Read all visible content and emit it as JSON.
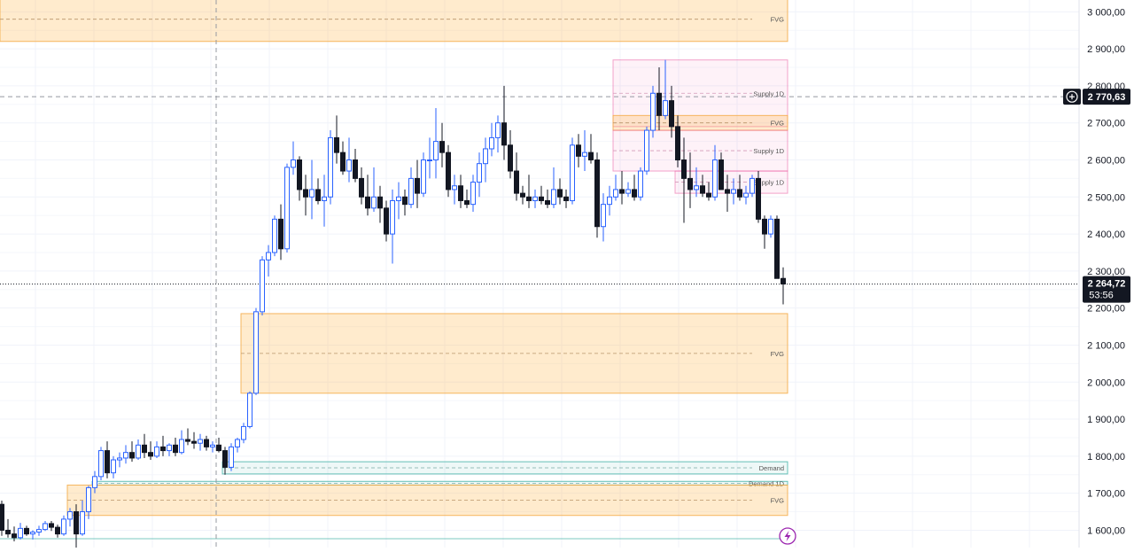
{
  "chart_data": {
    "type": "candlestick",
    "ylim": [
      1530,
      3040
    ],
    "grid": true,
    "y_ticks": [
      "3 000,00",
      "2 900,00",
      "2 800,00",
      "2 700,00",
      "2 600,00",
      "2 500,00",
      "2 400,00",
      "2 300,00",
      "2 200,00",
      "2 100,00",
      "2 000,00",
      "1 900,00",
      "1 800,00",
      "1 700,00",
      "1 600,00"
    ],
    "y_tick_values": [
      3000,
      2900,
      2800,
      2700,
      2600,
      2500,
      2400,
      2300,
      2200,
      2100,
      2000,
      1900,
      1800,
      1700,
      1600
    ],
    "current_price": {
      "value": 2264.72,
      "label": "2 264,72",
      "countdown": "53:56"
    },
    "crosshair_price": {
      "value": 2770.63,
      "label": "2 770,63"
    },
    "zones": [
      {
        "label": "FVG",
        "type": "fvg",
        "from": 2920,
        "to": 3040,
        "start_index": -1
      },
      {
        "label": "Supply 1D",
        "type": "supply",
        "from": 2690,
        "to": 2870,
        "start_index": 99
      },
      {
        "label": "FVG",
        "type": "fvg",
        "from": 2680,
        "to": 2720,
        "start_index": 99
      },
      {
        "label": "Supply 1D",
        "type": "supply",
        "from": 2570,
        "to": 2680,
        "start_index": 99
      },
      {
        "label": "Supply 1D",
        "type": "supply",
        "from": 2510,
        "to": 2570,
        "start_index": 109
      },
      {
        "label": "FVG",
        "type": "fvg",
        "from": 1970,
        "to": 2185,
        "start_index": 39
      },
      {
        "label": "Demand",
        "type": "demand",
        "from": 1752,
        "to": 1785,
        "start_index": 36
      },
      {
        "label": "Demand 1D",
        "type": "demand",
        "from": 1722,
        "to": 1732,
        "start_index": 15
      },
      {
        "label": "FVG",
        "type": "fvg",
        "from": 1640,
        "to": 1722,
        "start_index": 11
      }
    ],
    "candles": [
      [
        1670,
        1680,
        1585,
        1600
      ],
      [
        1600,
        1630,
        1580,
        1590
      ],
      [
        1590,
        1610,
        1570,
        1580
      ],
      [
        1580,
        1620,
        1575,
        1605
      ],
      [
        1605,
        1612,
        1585,
        1590
      ],
      [
        1590,
        1600,
        1575,
        1595
      ],
      [
        1595,
        1612,
        1585,
        1602
      ],
      [
        1602,
        1625,
        1598,
        1618
      ],
      [
        1618,
        1625,
        1598,
        1608
      ],
      [
        1608,
        1615,
        1580,
        1590
      ],
      [
        1590,
        1640,
        1585,
        1630
      ],
      [
        1630,
        1660,
        1610,
        1650
      ],
      [
        1650,
        1670,
        1535,
        1590
      ],
      [
        1590,
        1680,
        1585,
        1650
      ],
      [
        1650,
        1720,
        1630,
        1715
      ],
      [
        1715,
        1760,
        1700,
        1745
      ],
      [
        1745,
        1825,
        1735,
        1815
      ],
      [
        1815,
        1840,
        1740,
        1755
      ],
      [
        1755,
        1800,
        1740,
        1790
      ],
      [
        1790,
        1810,
        1770,
        1795
      ],
      [
        1795,
        1830,
        1780,
        1810
      ],
      [
        1810,
        1840,
        1785,
        1795
      ],
      [
        1795,
        1845,
        1790,
        1830
      ],
      [
        1830,
        1860,
        1795,
        1810
      ],
      [
        1810,
        1840,
        1790,
        1800
      ],
      [
        1800,
        1840,
        1795,
        1825
      ],
      [
        1825,
        1855,
        1800,
        1815
      ],
      [
        1815,
        1835,
        1800,
        1830
      ],
      [
        1830,
        1850,
        1800,
        1810
      ],
      [
        1810,
        1870,
        1805,
        1845
      ],
      [
        1845,
        1875,
        1830,
        1840
      ],
      [
        1840,
        1865,
        1820,
        1835
      ],
      [
        1835,
        1860,
        1815,
        1845
      ],
      [
        1845,
        1855,
        1815,
        1825
      ],
      [
        1825,
        1840,
        1810,
        1830
      ],
      [
        1830,
        1850,
        1810,
        1815
      ],
      [
        1815,
        1825,
        1750,
        1770
      ],
      [
        1770,
        1835,
        1760,
        1825
      ],
      [
        1825,
        1850,
        1810,
        1845
      ],
      [
        1845,
        1890,
        1835,
        1880
      ],
      [
        1880,
        1975,
        1875,
        1970
      ],
      [
        1970,
        2200,
        1965,
        2190
      ],
      [
        2190,
        2340,
        2180,
        2330
      ],
      [
        2330,
        2370,
        2285,
        2350
      ],
      [
        2350,
        2450,
        2340,
        2440
      ],
      [
        2440,
        2480,
        2330,
        2360
      ],
      [
        2360,
        2590,
        2350,
        2580
      ],
      [
        2580,
        2650,
        2560,
        2600
      ],
      [
        2600,
        2610,
        2490,
        2520
      ],
      [
        2520,
        2560,
        2450,
        2500
      ],
      [
        2500,
        2600,
        2440,
        2520
      ],
      [
        2520,
        2550,
        2480,
        2490
      ],
      [
        2490,
        2560,
        2420,
        2500
      ],
      [
        2500,
        2680,
        2480,
        2660
      ],
      [
        2660,
        2720,
        2590,
        2620
      ],
      [
        2620,
        2650,
        2560,
        2570
      ],
      [
        2570,
        2660,
        2540,
        2600
      ],
      [
        2600,
        2630,
        2540,
        2550
      ],
      [
        2550,
        2580,
        2480,
        2500
      ],
      [
        2500,
        2560,
        2450,
        2470
      ],
      [
        2470,
        2580,
        2460,
        2500
      ],
      [
        2500,
        2530,
        2430,
        2470
      ],
      [
        2470,
        2490,
        2380,
        2400
      ],
      [
        2400,
        2520,
        2320,
        2490
      ],
      [
        2490,
        2540,
        2440,
        2500
      ],
      [
        2500,
        2520,
        2450,
        2480
      ],
      [
        2480,
        2580,
        2470,
        2550
      ],
      [
        2550,
        2600,
        2470,
        2510
      ],
      [
        2510,
        2620,
        2500,
        2600
      ],
      [
        2600,
        2660,
        2550,
        2600
      ],
      [
        2600,
        2740,
        2550,
        2650
      ],
      [
        2650,
        2700,
        2580,
        2620
      ],
      [
        2620,
        2640,
        2500,
        2520
      ],
      [
        2520,
        2560,
        2480,
        2530
      ],
      [
        2530,
        2560,
        2470,
        2490
      ],
      [
        2490,
        2520,
        2470,
        2480
      ],
      [
        2480,
        2560,
        2460,
        2540
      ],
      [
        2540,
        2620,
        2500,
        2590
      ],
      [
        2590,
        2660,
        2540,
        2630
      ],
      [
        2630,
        2700,
        2610,
        2660
      ],
      [
        2660,
        2720,
        2620,
        2700
      ],
      [
        2700,
        2800,
        2600,
        2640
      ],
      [
        2640,
        2680,
        2550,
        2570
      ],
      [
        2570,
        2620,
        2490,
        2510
      ],
      [
        2510,
        2530,
        2480,
        2500
      ],
      [
        2500,
        2560,
        2470,
        2490
      ],
      [
        2490,
        2520,
        2470,
        2500
      ],
      [
        2500,
        2530,
        2480,
        2490
      ],
      [
        2490,
        2520,
        2470,
        2480
      ],
      [
        2480,
        2580,
        2470,
        2520
      ],
      [
        2520,
        2550,
        2480,
        2500
      ],
      [
        2500,
        2520,
        2470,
        2490
      ],
      [
        2490,
        2660,
        2480,
        2640
      ],
      [
        2640,
        2670,
        2580,
        2610
      ],
      [
        2610,
        2680,
        2570,
        2620
      ],
      [
        2620,
        2670,
        2590,
        2600
      ],
      [
        2600,
        2620,
        2390,
        2420
      ],
      [
        2420,
        2510,
        2380,
        2480
      ],
      [
        2480,
        2530,
        2450,
        2500
      ],
      [
        2500,
        2560,
        2490,
        2520
      ],
      [
        2520,
        2570,
        2480,
        2510
      ],
      [
        2510,
        2540,
        2500,
        2520
      ],
      [
        2520,
        2560,
        2490,
        2500
      ],
      [
        2500,
        2580,
        2490,
        2570
      ],
      [
        2570,
        2690,
        2560,
        2680
      ],
      [
        2680,
        2800,
        2660,
        2780
      ],
      [
        2780,
        2850,
        2680,
        2720
      ],
      [
        2720,
        2870,
        2710,
        2760
      ],
      [
        2760,
        2800,
        2660,
        2690
      ],
      [
        2690,
        2720,
        2580,
        2600
      ],
      [
        2600,
        2660,
        2430,
        2550
      ],
      [
        2550,
        2620,
        2470,
        2520
      ],
      [
        2520,
        2580,
        2500,
        2530
      ],
      [
        2530,
        2560,
        2500,
        2510
      ],
      [
        2510,
        2540,
        2490,
        2500
      ],
      [
        2500,
        2640,
        2490,
        2600
      ],
      [
        2600,
        2620,
        2520,
        2520
      ],
      [
        2520,
        2560,
        2460,
        2510
      ],
      [
        2510,
        2550,
        2480,
        2520
      ],
      [
        2520,
        2560,
        2490,
        2500
      ],
      [
        2500,
        2530,
        2480,
        2510
      ],
      [
        2510,
        2560,
        2500,
        2550
      ],
      [
        2550,
        2570,
        2430,
        2440
      ],
      [
        2440,
        2450,
        2360,
        2400
      ],
      [
        2400,
        2450,
        2390,
        2440
      ],
      [
        2440,
        2450,
        2280,
        2280
      ],
      [
        2280,
        2310,
        2210,
        2265
      ]
    ]
  },
  "ui": {
    "bolt_icon_color": "#9c27b0",
    "accent_color": "#2962ff"
  }
}
